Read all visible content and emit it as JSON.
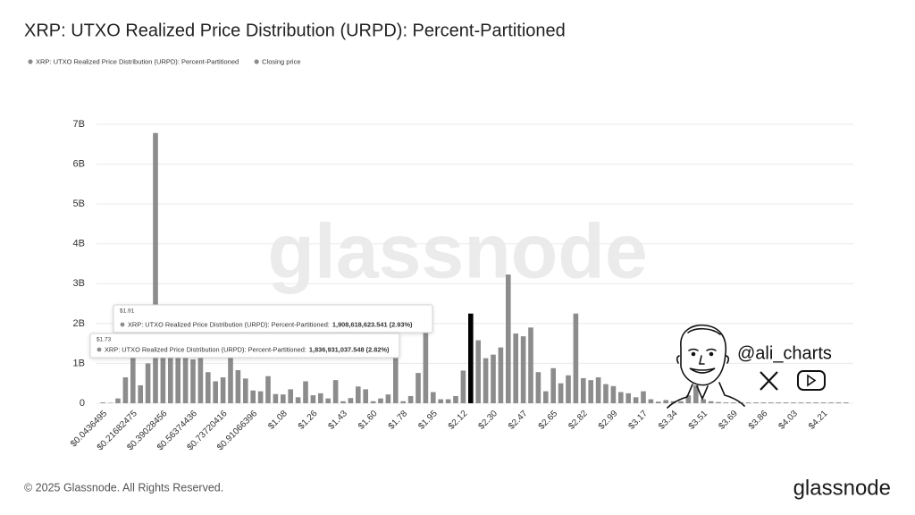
{
  "chart_data": {
    "type": "bar",
    "title": "XRP: UTXO Realized Price Distribution (URPD): Percent-Partitioned",
    "legend": [
      {
        "name": "XRP: UTXO Realized Price Distribution (URPD): Percent-Partitioned",
        "color": "#8c8c8c"
      },
      {
        "name": "Closing price",
        "color": "#8c8c8c"
      }
    ],
    "color": "#8c8c8c",
    "highlight": {
      "index": 49,
      "color": "#000000"
    },
    "categories": [
      "$0.0436495",
      null,
      null,
      null,
      "$0.21682475",
      null,
      null,
      null,
      "$0.39028456",
      null,
      null,
      null,
      "$0.56374436",
      null,
      null,
      null,
      "$0.73720416",
      null,
      null,
      null,
      "$0.91066396",
      null,
      null,
      null,
      "$1.08",
      null,
      null,
      null,
      "$1.26",
      null,
      null,
      null,
      "$1.43",
      null,
      null,
      null,
      "$1.60",
      null,
      null,
      null,
      "$1.78",
      null,
      null,
      null,
      "$1.95",
      null,
      null,
      null,
      "$2.12",
      null,
      null,
      null,
      "$2.30",
      null,
      null,
      null,
      "$2.47",
      null,
      null,
      null,
      "$2.65",
      null,
      null,
      null,
      "$2.82",
      null,
      null,
      null,
      "$2.99",
      null,
      null,
      null,
      "$3.17",
      null,
      null,
      null,
      "$3.34",
      null,
      null,
      null,
      "$3.51",
      null,
      null,
      null,
      "$3.69",
      null,
      null,
      null,
      "$3.86",
      null,
      null,
      null,
      "$4.03",
      null,
      null,
      null,
      "$4.21",
      null,
      null,
      null
    ],
    "values": [
      0.02,
      0.01,
      0.12,
      0.65,
      1.2,
      0.45,
      1.0,
      6.78,
      1.3,
      1.8,
      1.3,
      1.2,
      1.1,
      1.3,
      0.78,
      0.55,
      0.65,
      1.2,
      0.83,
      0.62,
      0.32,
      0.3,
      0.68,
      0.23,
      0.22,
      0.35,
      0.15,
      0.55,
      0.2,
      0.25,
      0.12,
      0.58,
      0.05,
      0.13,
      0.42,
      0.35,
      0.05,
      0.12,
      0.22,
      1.84,
      0.05,
      0.18,
      0.76,
      1.91,
      0.28,
      0.1,
      0.1,
      0.18,
      0.82,
      2.25,
      1.58,
      1.13,
      1.22,
      1.4,
      3.23,
      1.75,
      1.68,
      1.9,
      0.78,
      0.3,
      0.88,
      0.5,
      0.7,
      2.25,
      0.63,
      0.58,
      0.65,
      0.48,
      0.43,
      0.28,
      0.25,
      0.15,
      0.3,
      0.1,
      0.04,
      0.08,
      0.05,
      0.05,
      0.2,
      0.45,
      0.1,
      0.05,
      0.03,
      0.02,
      0.02,
      0.02,
      0.02,
      0.02,
      0.02,
      0.02,
      0.02,
      0.02,
      0.02,
      0.02,
      0.02,
      0.02,
      0.02,
      0.02,
      0.02,
      0.02
    ],
    "ylim": [
      0,
      7
    ],
    "yticks": [
      0,
      {
        "value": 1,
        "label": "1B"
      },
      {
        "value": 2,
        "label": "2B"
      },
      {
        "value": 3,
        "label": "3B"
      },
      {
        "value": 4,
        "label": "4B"
      },
      {
        "value": 5,
        "label": "5B"
      },
      {
        "value": 6,
        "label": "6B"
      },
      {
        "value": 7,
        "label": "7B"
      }
    ],
    "grid": true,
    "watermark": "glassnode",
    "tooltips": [
      {
        "price": "$1.91",
        "text": "XRP: UTXO Realized Price Distribution (URPD): Percent-Partitioned:",
        "value": "1,908,618,623.541 (2.93%)"
      },
      {
        "price": "$1.73",
        "text": "XRP: UTXO Realized Price Distribution (URPD): Percent-Partitioned:",
        "value": "1,836,931,037.548 (2.82%)"
      }
    ]
  },
  "author": "@ali_charts",
  "footer": {
    "copyright": "© 2025 Glassnode. All Rights Reserved.",
    "logo": "glassnode"
  }
}
